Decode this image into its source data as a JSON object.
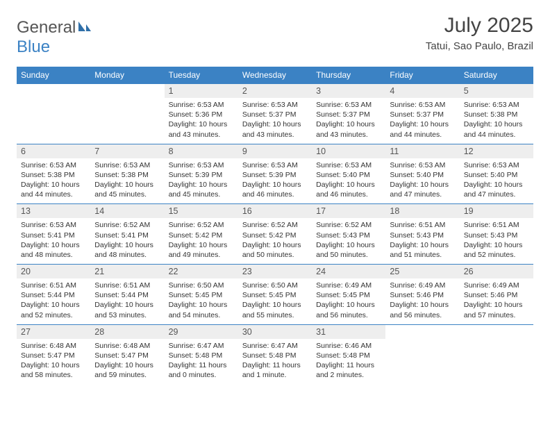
{
  "logo": {
    "text1": "General",
    "text2": "Blue"
  },
  "title": "July 2025",
  "subtitle": "Tatui, Sao Paulo, Brazil",
  "colors": {
    "header_bg": "#3b82c4",
    "header_text": "#ffffff",
    "daynum_bg": "#eeeeee",
    "body_text": "#333333",
    "logo_gray": "#555555",
    "logo_blue": "#3b82c4"
  },
  "weekdays": [
    "Sunday",
    "Monday",
    "Tuesday",
    "Wednesday",
    "Thursday",
    "Friday",
    "Saturday"
  ],
  "weeks": [
    [
      null,
      null,
      {
        "n": "1",
        "sunrise": "6:53 AM",
        "sunset": "5:36 PM",
        "daylight": "10 hours and 43 minutes."
      },
      {
        "n": "2",
        "sunrise": "6:53 AM",
        "sunset": "5:37 PM",
        "daylight": "10 hours and 43 minutes."
      },
      {
        "n": "3",
        "sunrise": "6:53 AM",
        "sunset": "5:37 PM",
        "daylight": "10 hours and 43 minutes."
      },
      {
        "n": "4",
        "sunrise": "6:53 AM",
        "sunset": "5:37 PM",
        "daylight": "10 hours and 44 minutes."
      },
      {
        "n": "5",
        "sunrise": "6:53 AM",
        "sunset": "5:38 PM",
        "daylight": "10 hours and 44 minutes."
      }
    ],
    [
      {
        "n": "6",
        "sunrise": "6:53 AM",
        "sunset": "5:38 PM",
        "daylight": "10 hours and 44 minutes."
      },
      {
        "n": "7",
        "sunrise": "6:53 AM",
        "sunset": "5:38 PM",
        "daylight": "10 hours and 45 minutes."
      },
      {
        "n": "8",
        "sunrise": "6:53 AM",
        "sunset": "5:39 PM",
        "daylight": "10 hours and 45 minutes."
      },
      {
        "n": "9",
        "sunrise": "6:53 AM",
        "sunset": "5:39 PM",
        "daylight": "10 hours and 46 minutes."
      },
      {
        "n": "10",
        "sunrise": "6:53 AM",
        "sunset": "5:40 PM",
        "daylight": "10 hours and 46 minutes."
      },
      {
        "n": "11",
        "sunrise": "6:53 AM",
        "sunset": "5:40 PM",
        "daylight": "10 hours and 47 minutes."
      },
      {
        "n": "12",
        "sunrise": "6:53 AM",
        "sunset": "5:40 PM",
        "daylight": "10 hours and 47 minutes."
      }
    ],
    [
      {
        "n": "13",
        "sunrise": "6:53 AM",
        "sunset": "5:41 PM",
        "daylight": "10 hours and 48 minutes."
      },
      {
        "n": "14",
        "sunrise": "6:52 AM",
        "sunset": "5:41 PM",
        "daylight": "10 hours and 48 minutes."
      },
      {
        "n": "15",
        "sunrise": "6:52 AM",
        "sunset": "5:42 PM",
        "daylight": "10 hours and 49 minutes."
      },
      {
        "n": "16",
        "sunrise": "6:52 AM",
        "sunset": "5:42 PM",
        "daylight": "10 hours and 50 minutes."
      },
      {
        "n": "17",
        "sunrise": "6:52 AM",
        "sunset": "5:43 PM",
        "daylight": "10 hours and 50 minutes."
      },
      {
        "n": "18",
        "sunrise": "6:51 AM",
        "sunset": "5:43 PM",
        "daylight": "10 hours and 51 minutes."
      },
      {
        "n": "19",
        "sunrise": "6:51 AM",
        "sunset": "5:43 PM",
        "daylight": "10 hours and 52 minutes."
      }
    ],
    [
      {
        "n": "20",
        "sunrise": "6:51 AM",
        "sunset": "5:44 PM",
        "daylight": "10 hours and 52 minutes."
      },
      {
        "n": "21",
        "sunrise": "6:51 AM",
        "sunset": "5:44 PM",
        "daylight": "10 hours and 53 minutes."
      },
      {
        "n": "22",
        "sunrise": "6:50 AM",
        "sunset": "5:45 PM",
        "daylight": "10 hours and 54 minutes."
      },
      {
        "n": "23",
        "sunrise": "6:50 AM",
        "sunset": "5:45 PM",
        "daylight": "10 hours and 55 minutes."
      },
      {
        "n": "24",
        "sunrise": "6:49 AM",
        "sunset": "5:45 PM",
        "daylight": "10 hours and 56 minutes."
      },
      {
        "n": "25",
        "sunrise": "6:49 AM",
        "sunset": "5:46 PM",
        "daylight": "10 hours and 56 minutes."
      },
      {
        "n": "26",
        "sunrise": "6:49 AM",
        "sunset": "5:46 PM",
        "daylight": "10 hours and 57 minutes."
      }
    ],
    [
      {
        "n": "27",
        "sunrise": "6:48 AM",
        "sunset": "5:47 PM",
        "daylight": "10 hours and 58 minutes."
      },
      {
        "n": "28",
        "sunrise": "6:48 AM",
        "sunset": "5:47 PM",
        "daylight": "10 hours and 59 minutes."
      },
      {
        "n": "29",
        "sunrise": "6:47 AM",
        "sunset": "5:48 PM",
        "daylight": "11 hours and 0 minutes."
      },
      {
        "n": "30",
        "sunrise": "6:47 AM",
        "sunset": "5:48 PM",
        "daylight": "11 hours and 1 minute."
      },
      {
        "n": "31",
        "sunrise": "6:46 AM",
        "sunset": "5:48 PM",
        "daylight": "11 hours and 2 minutes."
      },
      null,
      null
    ]
  ],
  "labels": {
    "sunrise": "Sunrise:",
    "sunset": "Sunset:",
    "daylight": "Daylight:"
  }
}
